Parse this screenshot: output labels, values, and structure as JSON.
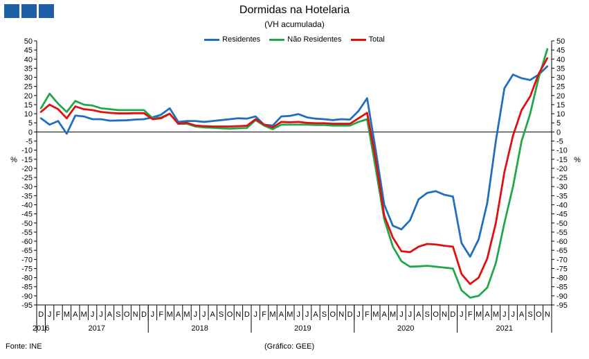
{
  "header": {
    "title": "Dormidas na Hotelaria",
    "subtitle": "(VH acumulada)",
    "logo_color": "#1f5fa8"
  },
  "footer": {
    "source": "Fonte: INE",
    "credit": "(Gráfico: GEE)"
  },
  "chart_data": {
    "type": "line",
    "title": "Dormidas na Hotelaria",
    "subtitle": "(VH acumulada)",
    "ylabel_left": "%",
    "ylabel_right": "%",
    "ylim": [
      -95,
      50
    ],
    "yticks": [
      50,
      45,
      40,
      35,
      30,
      25,
      20,
      15,
      10,
      5,
      0,
      -5,
      -10,
      -15,
      -20,
      -25,
      -30,
      -35,
      -40,
      -45,
      -50,
      -55,
      -60,
      -65,
      -70,
      -75,
      -80,
      -85,
      -90,
      -95
    ],
    "grid": false,
    "legend_position": "top-center",
    "months": [
      "D",
      "J",
      "F",
      "M",
      "A",
      "M",
      "J",
      "J",
      "A",
      "S",
      "O",
      "N",
      "D",
      "J",
      "F",
      "M",
      "A",
      "M",
      "J",
      "J",
      "A",
      "S",
      "O",
      "N",
      "D",
      "J",
      "F",
      "M",
      "A",
      "M",
      "J",
      "J",
      "A",
      "S",
      "O",
      "N",
      "D",
      "J",
      "F",
      "M",
      "A",
      "M",
      "J",
      "J",
      "A",
      "S",
      "O",
      "N",
      "D",
      "J",
      "F",
      "M",
      "A",
      "M",
      "J",
      "J",
      "A",
      "S",
      "O",
      "N"
    ],
    "years": [
      {
        "label": "2016",
        "start": 0,
        "end": 0
      },
      {
        "label": "2017",
        "start": 1,
        "end": 12
      },
      {
        "label": "2018",
        "start": 13,
        "end": 24
      },
      {
        "label": "2019",
        "start": 25,
        "end": 36
      },
      {
        "label": "2020",
        "start": 37,
        "end": 48
      },
      {
        "label": "2021",
        "start": 49,
        "end": 59
      }
    ],
    "series": [
      {
        "name": "Residentes",
        "color": "#1f6fc0",
        "values": [
          7.5,
          4,
          6,
          -1,
          9,
          8.5,
          7,
          7,
          6.2,
          6.3,
          6.4,
          6.8,
          7,
          8,
          9.5,
          13,
          5.5,
          6,
          6,
          5.5,
          6,
          6.5,
          7,
          7.5,
          7.3,
          8.5,
          4,
          3.5,
          8.5,
          8.8,
          9.8,
          8,
          7.3,
          7,
          6.5,
          7,
          6.8,
          11.5,
          18.5,
          -10,
          -40,
          -51.5,
          -53.5,
          -48.5,
          -37,
          -33.5,
          -32.5,
          -34.5,
          -35.5,
          -61,
          -68.5,
          -59,
          -39,
          -5,
          24,
          31.5,
          29.5,
          28.5,
          31.5,
          36
        ]
      },
      {
        "name": "Não Residentes",
        "color": "#1fa84a",
        "values": [
          13,
          21,
          15.5,
          11,
          17,
          15,
          14.5,
          13,
          12.5,
          12,
          12,
          12,
          12,
          7.5,
          8,
          10,
          4.5,
          4.5,
          3,
          2.5,
          2.3,
          2,
          1.8,
          2,
          2.2,
          6.5,
          3.5,
          1.5,
          4,
          4,
          4,
          4,
          3.8,
          3.8,
          3.5,
          3.5,
          3.5,
          5.5,
          7,
          -20,
          -48,
          -63,
          -71,
          -74,
          -73.8,
          -73.5,
          -74,
          -74.5,
          -75,
          -87,
          -91,
          -90,
          -85.5,
          -72,
          -50,
          -30,
          -5,
          10,
          30,
          45.5
        ]
      },
      {
        "name": "Total",
        "color": "#e01010",
        "values": [
          11,
          15,
          12.5,
          7.5,
          14,
          12.5,
          12,
          11,
          10.5,
          10.2,
          10.2,
          10.3,
          10.3,
          7,
          7.5,
          10,
          4.5,
          5,
          3.5,
          3.2,
          3,
          3,
          3,
          3.2,
          3.4,
          7,
          4,
          2.5,
          5.5,
          5.3,
          5.5,
          5,
          4.8,
          4.8,
          4.5,
          4.5,
          4.5,
          7.5,
          10.5,
          -15,
          -46,
          -58,
          -65.5,
          -66,
          -63,
          -61.5,
          -61.8,
          -62.5,
          -63,
          -78,
          -83.5,
          -80,
          -69.5,
          -50,
          -22,
          -2,
          12,
          19.5,
          32,
          40.5
        ]
      }
    ]
  }
}
